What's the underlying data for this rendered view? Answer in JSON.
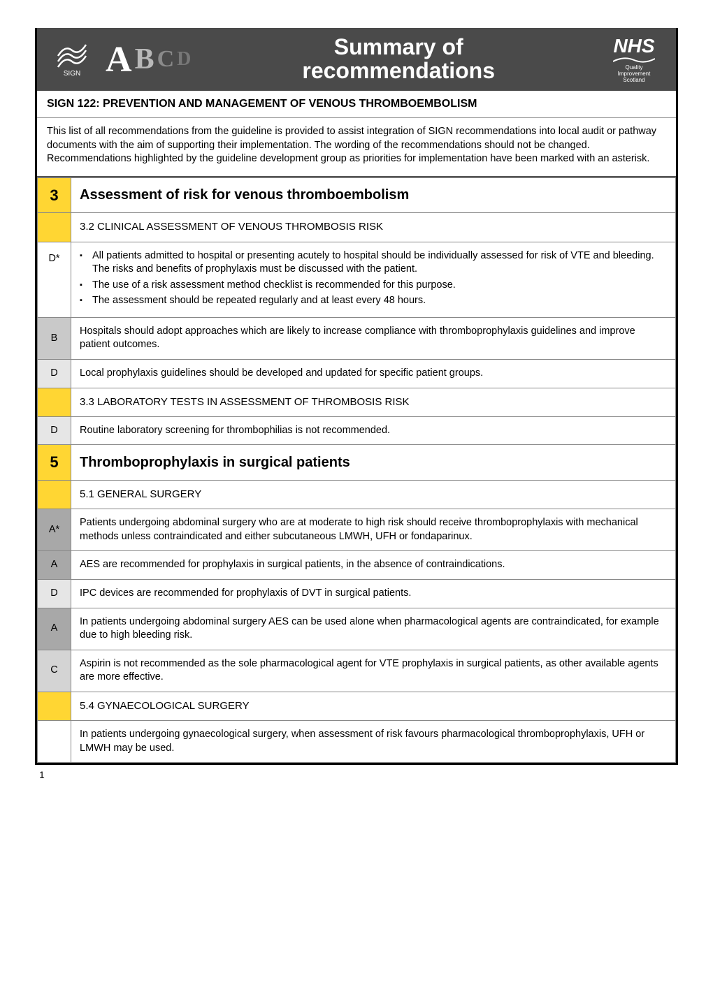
{
  "header": {
    "sign_text": "SIGN",
    "abcd": {
      "A": "A",
      "B": "B",
      "C": "C",
      "D": "D"
    },
    "title_line1": "Summary of",
    "title_line2": "recommendations",
    "nhs": {
      "top": "NHS",
      "wave": "~~~",
      "line1": "Quality",
      "line2": "Improvement",
      "line3": "Scotland"
    }
  },
  "title": {
    "code": "SIGN 122:",
    "text": "PREVENTION AND MANAGEMENT OF VENOUS THROMBOEMBOLISM"
  },
  "intro": "This list of all recommendations from the guideline is provided to assist integration of SIGN recommendations into local audit or pathway documents with the aim of supporting their implementation. The wording of the recommendations should not be changed. Recommendations highlighted by the guideline development group as priorities for implementation have been marked with an asterisk.",
  "rows": [
    {
      "type": "section",
      "num": "3",
      "text": "Assessment of risk for venous thromboembolism"
    },
    {
      "type": "sub",
      "text": "3.2 CLINICAL ASSESSMENT OF VENOUS THROMBOSIS RISK"
    },
    {
      "type": "rec-bullets",
      "grade": "D*",
      "shade": "#ffffff",
      "bullets": [
        "All patients admitted to hospital or presenting acutely to hospital should be individually assessed for risk of VTE and bleeding. The risks and benefits of prophylaxis must be discussed with the patient.",
        "The use of a risk assessment method checklist is recommended for this purpose.",
        "The assessment should be repeated regularly and at least every 48 hours."
      ]
    },
    {
      "type": "rec",
      "grade": "B",
      "shade": "#c9c9c9",
      "text": "Hospitals should adopt approaches which are likely to increase compliance with thromboprophylaxis guidelines and improve patient outcomes."
    },
    {
      "type": "rec",
      "grade": "D",
      "shade": "#e6e6e6",
      "text": "Local prophylaxis guidelines should be developed and updated for specific patient groups."
    },
    {
      "type": "sub",
      "text": "3.3 LABORATORY TESTS IN ASSESSMENT OF THROMBOSIS RISK"
    },
    {
      "type": "rec",
      "grade": "D",
      "shade": "#e6e6e6",
      "text": "Routine laboratory screening for thrombophilias is not recommended."
    },
    {
      "type": "section",
      "num": "5",
      "text": "Thromboprophylaxis in surgical patients"
    },
    {
      "type": "sub",
      "text": "5.1 GENERAL SURGERY"
    },
    {
      "type": "rec",
      "grade": "A*",
      "shade": "#a8a8a8",
      "text": "Patients undergoing abdominal surgery who are at moderate to high risk should receive thromboprophylaxis with mechanical methods unless contraindicated and either subcutaneous LMWH, UFH or fondaparinux."
    },
    {
      "type": "rec",
      "grade": "A",
      "shade": "#a8a8a8",
      "text": "AES are recommended for prophylaxis in surgical patients, in the absence of contraindications."
    },
    {
      "type": "rec",
      "grade": "D",
      "shade": "#e6e6e6",
      "text": "IPC devices are recommended for prophylaxis of DVT in surgical patients."
    },
    {
      "type": "rec",
      "grade": "A",
      "shade": "#a8a8a8",
      "text": "In patients undergoing abdominal surgery AES can be used alone when pharmacological agents are contraindicated, for example due to high bleeding risk."
    },
    {
      "type": "rec",
      "grade": "C",
      "shade": "#d4d4d4",
      "text": "Aspirin is not recommended as the sole pharmacological agent for VTE prophylaxis in surgical patients, as other available agents are more effective."
    },
    {
      "type": "sub",
      "text": "5.4 GYNAECOLOGICAL SURGERY"
    },
    {
      "type": "rec",
      "grade": "",
      "shade": "#ffffff",
      "text": "In patients undergoing gynaecological surgery, when assessment of risk favours pharmacological thromboprophylaxis, UFH or LMWH may be used."
    }
  ],
  "page_number": "1",
  "colors": {
    "banner_bg": "#4a4a4a",
    "yellow": "#ffd633",
    "grade_A": "#a8a8a8",
    "grade_B": "#c9c9c9",
    "grade_C": "#d4d4d4",
    "grade_D": "#e6e6e6",
    "border": "#888888",
    "outer_border": "#000000",
    "text": "#000000",
    "white": "#ffffff"
  },
  "typography": {
    "body_font": "Arial",
    "body_size_pt": 11,
    "section_head_size_pt": 15,
    "title_size_pt": 12
  }
}
